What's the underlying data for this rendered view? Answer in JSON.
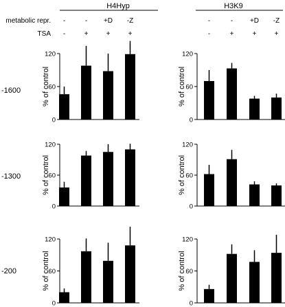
{
  "header": {
    "groups": [
      "H4Hyp",
      "H3K9"
    ],
    "row_labels": [
      "metabolic repr.",
      "TSA"
    ],
    "metabolic_values": [
      "-",
      "-",
      "+D",
      "-Z"
    ],
    "tsa_values": [
      "-",
      "+",
      "+",
      "+"
    ]
  },
  "chart_data": [
    {
      "type": "bar",
      "group": "H4Hyp",
      "row": "-1600",
      "ylabel": "% of control",
      "ylim": [
        0,
        120
      ],
      "yticks": [
        0,
        60,
        120
      ],
      "values": [
        46,
        98,
        88,
        119
      ],
      "errors": [
        14,
        36,
        32,
        24
      ]
    },
    {
      "type": "bar",
      "group": "H3K9",
      "row": "-1600",
      "ylabel": "% of control",
      "ylim": [
        0,
        120
      ],
      "yticks": [
        0,
        60,
        120
      ],
      "values": [
        70,
        93,
        38,
        40
      ],
      "errors": [
        20,
        10,
        5,
        7
      ]
    },
    {
      "type": "bar",
      "group": "H4Hyp",
      "row": "-1300",
      "ylabel": "% of control",
      "ylim": [
        0,
        120
      ],
      "yticks": [
        0,
        60,
        120
      ],
      "values": [
        36,
        98,
        105,
        110
      ],
      "errors": [
        11,
        9,
        15,
        11
      ]
    },
    {
      "type": "bar",
      "group": "H3K9",
      "row": "-1300",
      "ylabel": "% of control",
      "ylim": [
        0,
        120
      ],
      "yticks": [
        0,
        60,
        120
      ],
      "values": [
        62,
        91,
        42,
        40
      ],
      "errors": [
        18,
        18,
        6,
        4
      ]
    },
    {
      "type": "bar",
      "group": "H4Hyp",
      "row": "-200",
      "ylabel": "% of control",
      "ylim": [
        0,
        120
      ],
      "yticks": [
        0,
        60,
        120
      ],
      "values": [
        20,
        97,
        79,
        108
      ],
      "errors": [
        7,
        24,
        34,
        35
      ]
    },
    {
      "type": "bar",
      "group": "H3K9",
      "row": "-200",
      "ylabel": "% of control",
      "ylim": [
        0,
        120
      ],
      "yticks": [
        0,
        60,
        120
      ],
      "values": [
        26,
        92,
        77,
        94
      ],
      "errors": [
        8,
        18,
        22,
        34
      ]
    }
  ]
}
